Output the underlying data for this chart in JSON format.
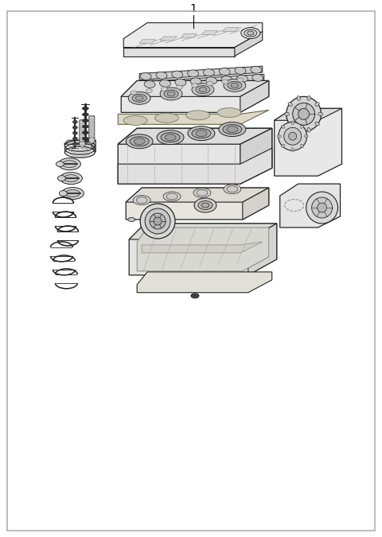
{
  "bg_color": "#ffffff",
  "border_color": "#b0b0b0",
  "fig_width": 4.8,
  "fig_height": 6.75,
  "dpi": 100,
  "label_number": "1",
  "border_lw": 1.2,
  "line_color": "#222222",
  "light_fill": "#f2f2f2",
  "mid_fill": "#e0e0e0",
  "dark_fill": "#c8c8c8",
  "very_light": "#f8f8f8"
}
